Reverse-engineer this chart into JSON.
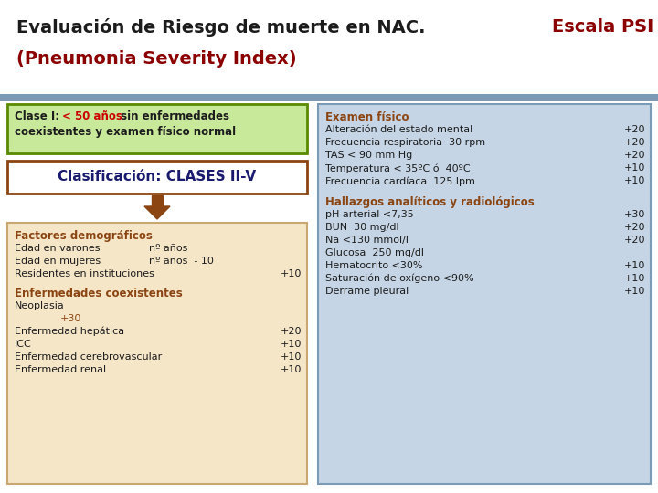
{
  "title_part1": "Evaluación de Riesgo de muerte en NAC. ",
  "title_part2": "Escala PSI",
  "title_part3": "(Pneumonia Severity Index)",
  "title_color1": "#1c1c1c",
  "title_color2": "#8b0000",
  "bg_color": "#ffffff",
  "left_panel_bg": "#c8e89a",
  "clase1_border": "#5a8a00",
  "clasificacion_text": "Clasificación: CLASES II-V",
  "clasificacion_border": "#8b4513",
  "clasificacion_bg": "#ffffff",
  "arrow_color": "#8b4513",
  "main_left_bg": "#f5e6c8",
  "main_right_bg": "#c5d5e5",
  "heading_color": "#8b4513",
  "text_color": "#1c1c1c",
  "bar_color": "#7a9ab5",
  "left_heading1": "Factores demográficos",
  "left_items1": [
    [
      "Edad en varones",
      "nº años",
      ""
    ],
    [
      "Edad en mujeres",
      "nº años  - 10",
      ""
    ],
    [
      "Residentes en instituciones",
      "",
      "+10"
    ]
  ],
  "left_heading2": "Enfermedades coexistentes",
  "left_items2": [
    [
      "Neoplasia",
      "",
      ""
    ],
    [
      "",
      "+30",
      ""
    ],
    [
      "Enfermedad hepática",
      "",
      "+20"
    ],
    [
      "ICC",
      "",
      "+10"
    ],
    [
      "Enfermedad cerebrovascular",
      "",
      "+10"
    ],
    [
      "Enfermedad renal",
      "",
      "+10"
    ]
  ],
  "right_heading1": "Examen físico",
  "right_items1": [
    [
      "Alteración del estado mental",
      "+20"
    ],
    [
      "Frecuencia respiratoria  30 rpm",
      "+20"
    ],
    [
      "TAS < 90 mm Hg",
      "+20"
    ],
    [
      "Temperatura < 35ºC ó  40ºC",
      "+10"
    ],
    [
      "Frecuencia cardíaca  125 lpm",
      "+10"
    ]
  ],
  "right_heading2": "Hallazgos analíticos y radiológicos",
  "right_items2": [
    [
      "pH arterial <7,35",
      "+30"
    ],
    [
      "BUN  30 mg/dl",
      "+20"
    ],
    [
      "Na <130 mmol/l",
      "+20"
    ],
    [
      "Glucosa  250 mg/dl",
      ""
    ],
    [
      "Hematocrito <30%",
      "+10"
    ],
    [
      "Saturación de oxígeno <90%",
      "+10"
    ],
    [
      "Derrame pleural",
      "+10"
    ]
  ],
  "figsize": [
    7.2,
    5.4
  ],
  "dpi": 100
}
